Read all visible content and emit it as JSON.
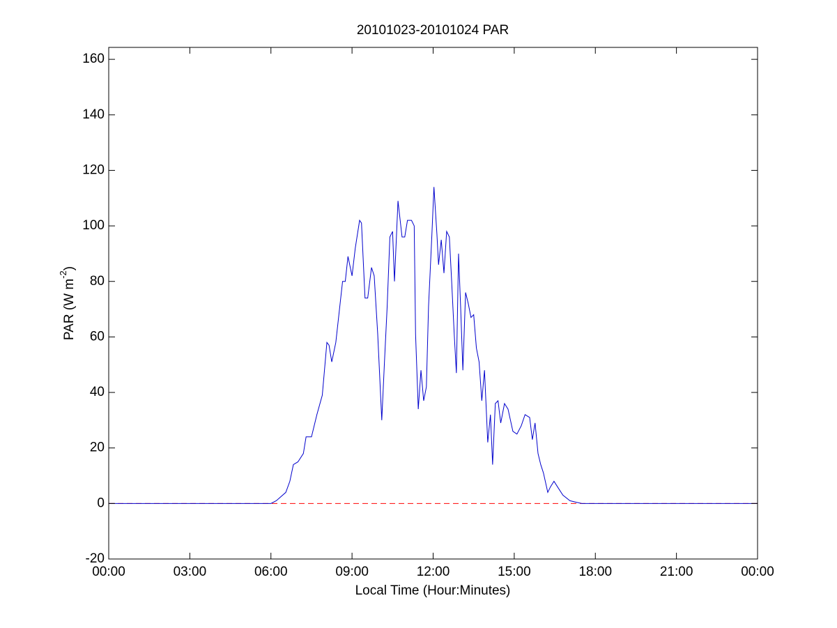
{
  "chart_data": {
    "type": "line",
    "title": "20101023-20101024 PAR",
    "xlabel": "Local Time (Hour:Minutes)",
    "ylabel": [
      "PAR (W m",
      "-2",
      ")"
    ],
    "x": [
      0,
      6.0,
      6.2,
      6.55,
      6.7,
      6.83,
      7.0,
      7.2,
      7.3,
      7.5,
      7.7,
      7.9,
      8.07,
      8.15,
      8.25,
      8.4,
      8.65,
      8.75,
      8.85,
      9.0,
      9.12,
      9.28,
      9.35,
      9.48,
      9.58,
      9.72,
      9.82,
      9.95,
      10.1,
      10.2,
      10.3,
      10.4,
      10.5,
      10.57,
      10.7,
      10.85,
      10.95,
      11.05,
      11.2,
      11.3,
      11.35,
      11.45,
      11.55,
      11.65,
      11.75,
      11.83,
      11.95,
      12.03,
      12.14,
      12.2,
      12.3,
      12.4,
      12.5,
      12.6,
      12.68,
      12.78,
      12.86,
      12.94,
      13.02,
      13.1,
      13.2,
      13.3,
      13.4,
      13.5,
      13.6,
      13.7,
      13.8,
      13.9,
      14.02,
      14.12,
      14.2,
      14.3,
      14.4,
      14.5,
      14.64,
      14.77,
      14.95,
      15.1,
      15.26,
      15.4,
      15.57,
      15.67,
      15.77,
      15.88,
      15.98,
      16.08,
      16.24,
      16.34,
      16.47,
      16.6,
      16.8,
      17.06,
      17.27,
      17.5,
      24
    ],
    "series": [
      {
        "color": "#0000cc",
        "values": [
          0,
          0,
          1,
          4,
          8,
          14,
          15,
          18,
          24,
          24,
          32,
          39,
          58,
          57,
          51,
          58,
          80,
          80,
          89,
          82,
          92,
          102,
          101,
          74,
          74,
          85,
          82,
          61,
          30,
          51,
          71,
          96,
          98,
          80,
          109,
          96,
          96,
          102,
          102,
          100,
          61,
          34,
          48,
          37,
          42,
          71,
          96,
          114,
          97,
          86,
          95,
          83,
          98,
          96,
          81,
          61,
          47,
          90,
          70,
          48,
          76,
          72,
          67,
          68,
          56,
          51,
          37,
          48,
          22,
          32,
          14,
          36,
          37,
          29,
          36,
          34,
          26,
          25,
          28,
          32,
          31,
          23,
          29,
          18,
          14,
          11,
          4,
          6,
          8,
          6,
          3,
          1,
          0.5,
          0,
          0
        ]
      }
    ],
    "reference_line": {
      "y": 0,
      "color": "#ff0000"
    },
    "xlim": [
      0,
      24
    ],
    "xticks": [
      {
        "value": 0,
        "label": "00:00"
      },
      {
        "value": 3,
        "label": "03:00"
      },
      {
        "value": 6,
        "label": "06:00"
      },
      {
        "value": 9,
        "label": "09:00"
      },
      {
        "value": 12,
        "label": "12:00"
      },
      {
        "value": 15,
        "label": "15:00"
      },
      {
        "value": 18,
        "label": "18:00"
      },
      {
        "value": 21,
        "label": "21:00"
      },
      {
        "value": 24,
        "label": "00:00"
      }
    ],
    "ylim": [
      -20,
      164.3
    ],
    "yticks": [
      -20,
      0,
      20,
      40,
      60,
      80,
      100,
      120,
      140,
      160
    ],
    "grid": false
  }
}
